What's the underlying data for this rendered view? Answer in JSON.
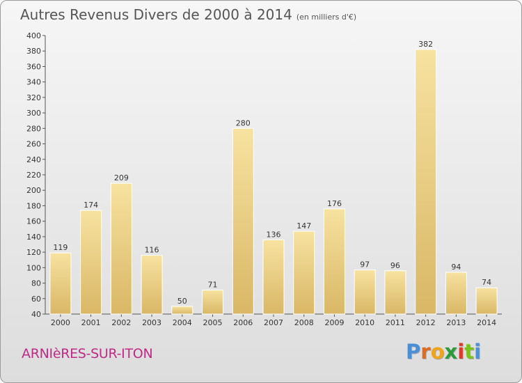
{
  "header": {
    "title": "Autres Revenus Divers de 2000 à 2014",
    "subtitle": "(en milliers d'€)"
  },
  "footer": {
    "place": "ARNIèRES-SUR-ITON",
    "logo": [
      "P",
      "r",
      "o",
      "x",
      "i",
      "t",
      "i"
    ]
  },
  "colors": {
    "bar_light": "#f7e2a0",
    "bar_dark": "#d9b766",
    "place": "#c02a86",
    "logo": [
      "#4b8fd6",
      "#e06a1f",
      "#f0a41c",
      "#2e9b3a",
      "#d93a2a",
      "#7cc21c",
      "#4b8fd6"
    ]
  },
  "chart_data": {
    "type": "bar",
    "title": "Autres Revenus Divers de 2000 à 2014",
    "subtitle": "(en milliers d'€)",
    "categories": [
      "2000",
      "2001",
      "2002",
      "2003",
      "2004",
      "2005",
      "2006",
      "2007",
      "2008",
      "2009",
      "2010",
      "2011",
      "2012",
      "2013",
      "2014"
    ],
    "values": [
      119,
      174,
      209,
      116,
      50,
      71,
      280,
      136,
      147,
      176,
      97,
      96,
      382,
      94,
      74
    ],
    "ylim": [
      40,
      400
    ],
    "yticks": [
      40,
      60,
      80,
      100,
      120,
      140,
      160,
      180,
      200,
      220,
      240,
      260,
      280,
      300,
      320,
      340,
      360,
      380,
      400
    ],
    "grid": false,
    "xlabel": "",
    "ylabel": ""
  }
}
